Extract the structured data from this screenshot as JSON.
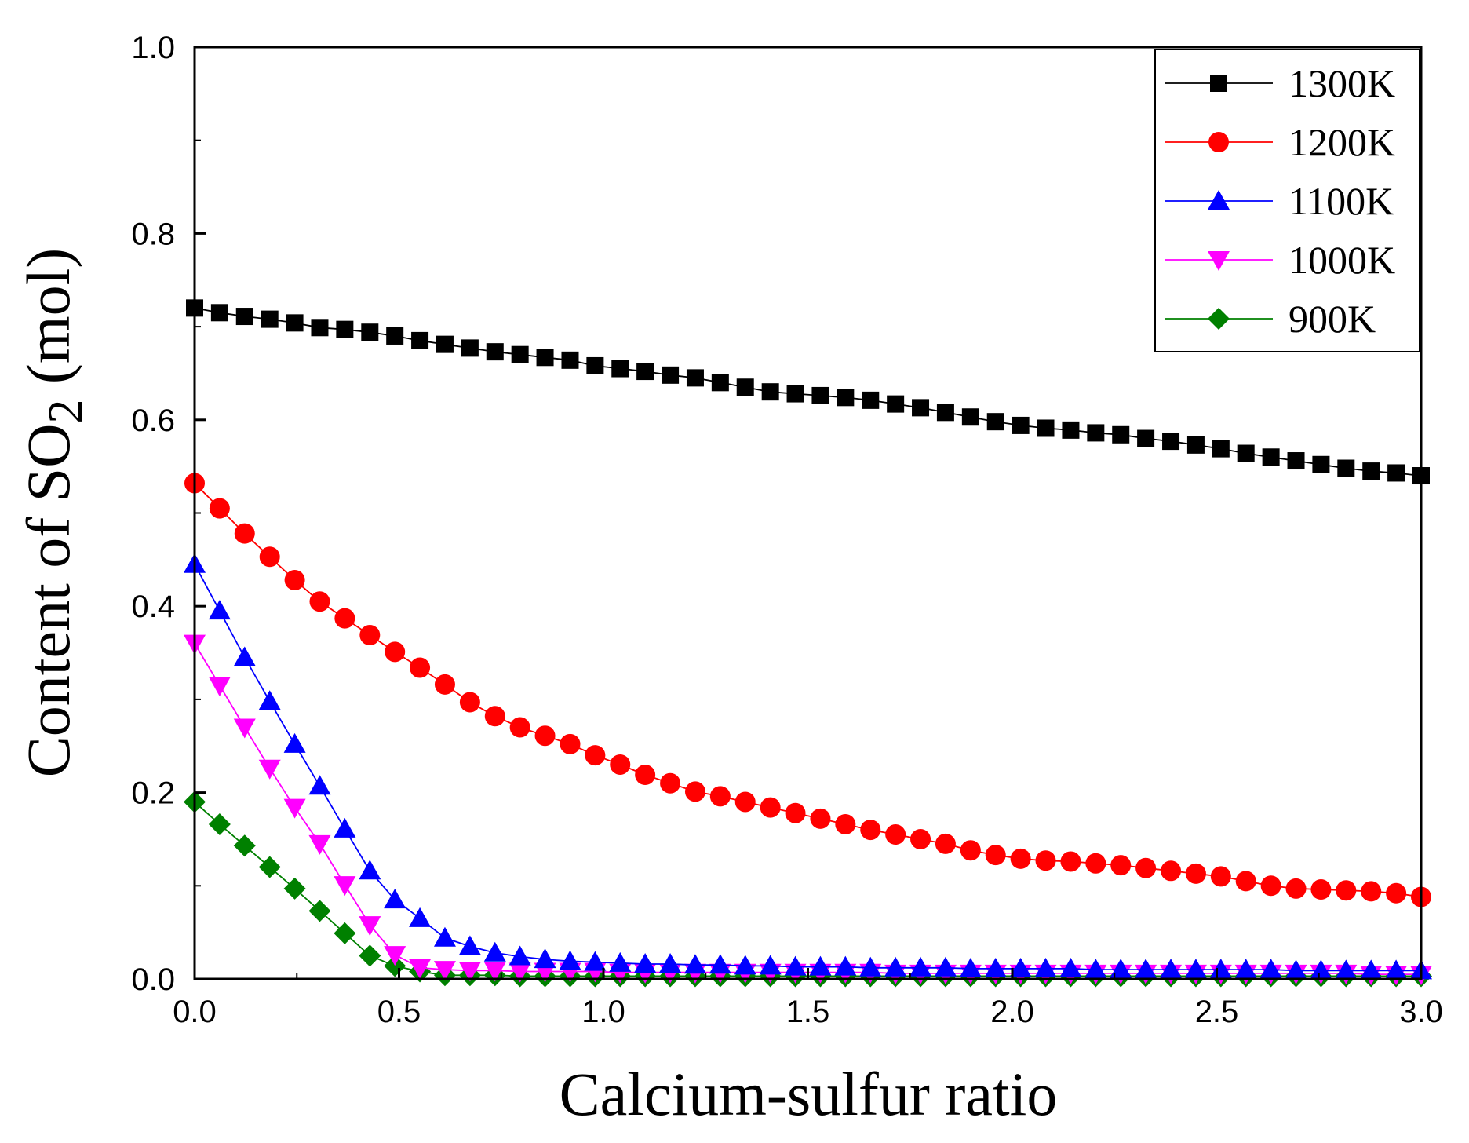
{
  "chart_data": {
    "type": "line",
    "title": "",
    "xlabel": "Calcium-sulfur ratio",
    "ylabel_prefix": "Content of SO",
    "ylabel_subscript": "2",
    "ylabel_suffix": " (mol)",
    "xlim": [
      0,
      3
    ],
    "ylim": [
      0,
      1
    ],
    "x_ticks": [
      "0.0",
      "0.5",
      "1.0",
      "1.5",
      "2.0",
      "2.5",
      "3.0"
    ],
    "y_ticks": [
      "0.0",
      "0.2",
      "0.4",
      "0.6",
      "0.8",
      "1.0"
    ],
    "legend_position": "top-right",
    "grid": false,
    "x": [
      0.0,
      0.0612,
      0.1224,
      0.1837,
      0.2449,
      0.3061,
      0.3673,
      0.4286,
      0.4898,
      0.551,
      0.6122,
      0.6735,
      0.7347,
      0.7959,
      0.8571,
      0.9184,
      0.9796,
      1.0408,
      1.102,
      1.1633,
      1.2245,
      1.2857,
      1.3469,
      1.4082,
      1.4694,
      1.5306,
      1.5918,
      1.6531,
      1.7143,
      1.7755,
      1.8367,
      1.898,
      1.9592,
      2.0204,
      2.0816,
      2.1429,
      2.2041,
      2.2653,
      2.3265,
      2.3878,
      2.449,
      2.5102,
      2.5714,
      2.6327,
      2.6939,
      2.7551,
      2.8163,
      2.8776,
      2.9388,
      3.0
    ],
    "series": [
      {
        "name": "1300K",
        "color": "#000000",
        "marker": "square",
        "values": [
          0.72,
          0.715,
          0.711,
          0.708,
          0.704,
          0.699,
          0.697,
          0.694,
          0.69,
          0.685,
          0.681,
          0.677,
          0.673,
          0.67,
          0.667,
          0.664,
          0.658,
          0.655,
          0.652,
          0.648,
          0.645,
          0.64,
          0.635,
          0.63,
          0.628,
          0.626,
          0.624,
          0.621,
          0.617,
          0.613,
          0.608,
          0.603,
          0.598,
          0.594,
          0.591,
          0.589,
          0.586,
          0.584,
          0.58,
          0.577,
          0.573,
          0.569,
          0.564,
          0.56,
          0.556,
          0.552,
          0.548,
          0.545,
          0.543,
          0.54
        ]
      },
      {
        "name": "1200K",
        "color": "#ff0000",
        "marker": "circle",
        "values": [
          0.532,
          0.505,
          0.478,
          0.453,
          0.428,
          0.405,
          0.387,
          0.369,
          0.351,
          0.334,
          0.316,
          0.297,
          0.282,
          0.27,
          0.261,
          0.252,
          0.24,
          0.23,
          0.219,
          0.21,
          0.201,
          0.196,
          0.19,
          0.184,
          0.178,
          0.172,
          0.166,
          0.16,
          0.155,
          0.15,
          0.145,
          0.138,
          0.133,
          0.129,
          0.127,
          0.126,
          0.124,
          0.122,
          0.119,
          0.116,
          0.113,
          0.11,
          0.105,
          0.1,
          0.097,
          0.096,
          0.095,
          0.094,
          0.092,
          0.088
        ]
      },
      {
        "name": "1100K",
        "color": "#0000ff",
        "marker": "triangle-up",
        "values": [
          0.445,
          0.395,
          0.345,
          0.298,
          0.252,
          0.207,
          0.161,
          0.116,
          0.085,
          0.065,
          0.044,
          0.035,
          0.028,
          0.024,
          0.021,
          0.019,
          0.018,
          0.017,
          0.016,
          0.016,
          0.015,
          0.015,
          0.014,
          0.014,
          0.013,
          0.013,
          0.013,
          0.012,
          0.012,
          0.012,
          0.012,
          0.011,
          0.011,
          0.011,
          0.011,
          0.011,
          0.01,
          0.01,
          0.01,
          0.01,
          0.01,
          0.01,
          0.01,
          0.01,
          0.009,
          0.009,
          0.009,
          0.009,
          0.009,
          0.009
        ]
      },
      {
        "name": "1000K",
        "color": "#ff00ff",
        "marker": "triangle-down",
        "values": [
          0.36,
          0.315,
          0.27,
          0.226,
          0.184,
          0.145,
          0.101,
          0.058,
          0.026,
          0.012,
          0.01,
          0.009,
          0.009,
          0.008,
          0.008,
          0.008,
          0.008,
          0.007,
          0.007,
          0.007,
          0.007,
          0.007,
          0.007,
          0.007,
          0.007,
          0.007,
          0.007,
          0.007,
          0.006,
          0.006,
          0.006,
          0.006,
          0.006,
          0.006,
          0.006,
          0.006,
          0.006,
          0.006,
          0.006,
          0.006,
          0.006,
          0.006,
          0.006,
          0.006,
          0.006,
          0.006,
          0.006,
          0.005,
          0.005,
          0.005
        ]
      },
      {
        "name": "900K",
        "color": "#008000",
        "marker": "diamond",
        "values": [
          0.19,
          0.166,
          0.143,
          0.12,
          0.097,
          0.073,
          0.049,
          0.025,
          0.014,
          0.008,
          0.004,
          0.004,
          0.004,
          0.003,
          0.003,
          0.003,
          0.003,
          0.003,
          0.003,
          0.003,
          0.003,
          0.003,
          0.003,
          0.003,
          0.003,
          0.003,
          0.003,
          0.003,
          0.003,
          0.003,
          0.003,
          0.003,
          0.003,
          0.003,
          0.003,
          0.003,
          0.003,
          0.003,
          0.003,
          0.003,
          0.003,
          0.003,
          0.003,
          0.003,
          0.003,
          0.003,
          0.003,
          0.003,
          0.003,
          0.003
        ]
      }
    ]
  }
}
